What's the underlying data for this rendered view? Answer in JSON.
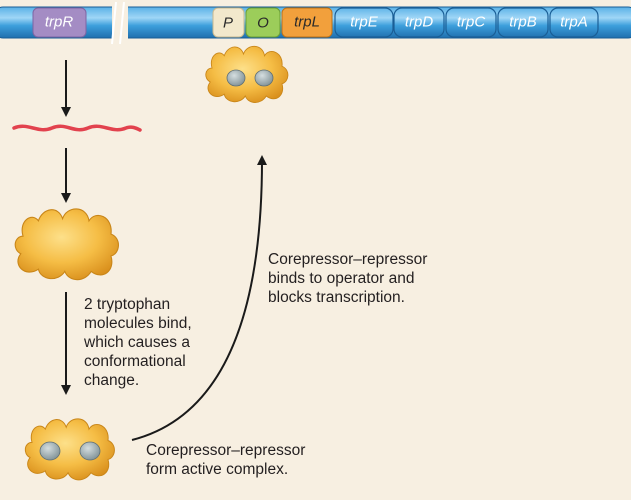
{
  "dna": {
    "regulator_gene": "trpR",
    "promoter": "P",
    "operator": "O",
    "leader": "trpL",
    "structural_genes": [
      "trpE",
      "trpD",
      "trpC",
      "trpB",
      "trpA"
    ]
  },
  "captions": {
    "bind": [
      "2 tryptophan",
      "molecules bind,",
      "which causes a",
      "conformational",
      "change."
    ],
    "complex": [
      "Corepressor–repressor",
      "form active complex."
    ],
    "operator_binding": [
      "Corepressor–repressor",
      "binds to operator and",
      "blocks transcription."
    ]
  },
  "colors": {
    "dna": "#2c8fd0",
    "dna_light": "#79c3f0",
    "trpR_box": "#a48cc4",
    "promoter_box": "#f2e8cc",
    "operator_box": "#9ccd5a",
    "trpL_box": "#f2a03c",
    "mrna": "#e2424e",
    "repressor": "#f2b53c",
    "tryptophan": "#9aaab0",
    "background": "#f7efe1"
  }
}
